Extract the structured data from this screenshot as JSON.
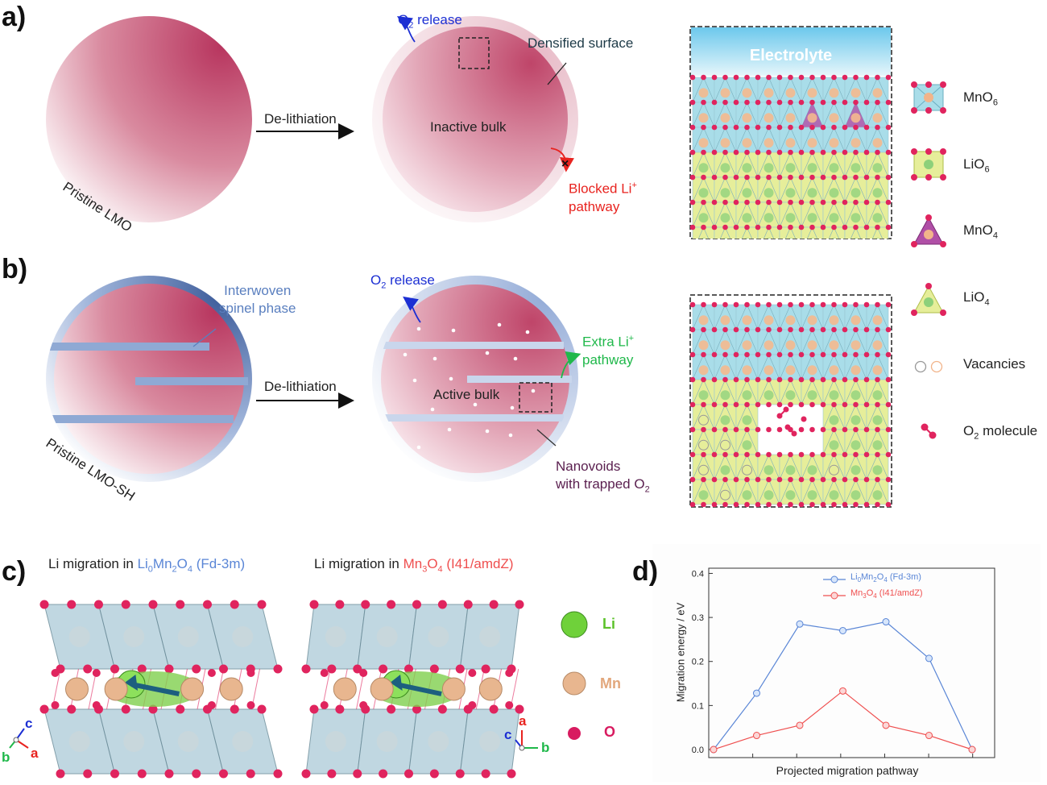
{
  "panels": {
    "a": {
      "label": "a)",
      "pristine_label": "Pristine LMO",
      "arrow_label": "De-lithiation",
      "o2_release": "O",
      "o2_sub": "2",
      "o2_suffix": " release",
      "densified": "Densified surface",
      "inactive_bulk": "Inactive bulk",
      "blocked_line1": "Blocked Li",
      "blocked_sup": "+",
      "blocked_line2": "pathway",
      "electrolyte": "Electrolyte"
    },
    "b": {
      "label": "b)",
      "pristine_label": "Pristine LMO-SH",
      "interwoven_line1": "Interwoven",
      "interwoven_line2": "spinel phase",
      "arrow_label": "De-lithiation",
      "o2_release": "O",
      "o2_sub": "2",
      "o2_suffix": " release",
      "extra_line1": "Extra Li",
      "extra_sup": "+",
      "extra_line2": "pathway",
      "active_bulk": "Active bulk",
      "nanovoids_line1": "Nanovoids",
      "nanovoids_line2": "with trapped O",
      "nanovoids_sub": "2"
    },
    "c": {
      "label": "c)",
      "title1_prefix": "Li migration in ",
      "title1_formula": "Li",
      "title1_sub0": "0",
      "title1_mn": "Mn",
      "title1_sub2": "2",
      "title1_o": "O",
      "title1_sub4": "4",
      "title1_group": " (Fd-3m)",
      "title2_prefix": "Li migration in ",
      "title2_mn": "Mn",
      "title2_sub3": "3",
      "title2_o": "O",
      "title2_sub4": "4",
      "title2_group": " (I41/amdZ)",
      "atom_legend": [
        "Li",
        "Mn",
        "O"
      ],
      "axes1": [
        "c",
        "b",
        "a"
      ],
      "axes2": [
        "c",
        "a",
        "b"
      ]
    },
    "d": {
      "label": "d)"
    }
  },
  "legend": [
    {
      "name": "MnO",
      "sub": "6",
      "icon": "mno6-octahedron-icon"
    },
    {
      "name": "LiO",
      "sub": "6",
      "icon": "lio6-octahedron-icon"
    },
    {
      "name": "MnO",
      "sub": "4",
      "icon": "mno4-tetrahedron-icon"
    },
    {
      "name": "LiO",
      "sub": "4",
      "icon": "lio4-tetrahedron-icon"
    },
    {
      "name": "Vacancies",
      "sub": "",
      "icon": "vacancy-icon"
    },
    {
      "name": "O",
      "sub": "2",
      "suffix": " molecule",
      "icon": "o2-molecule-icon"
    }
  ],
  "colors": {
    "lmo_pink": "#c24b6e",
    "spinel_blue": "#7f9cc9",
    "mno6": "#a9dde9",
    "lio6": "#e6ee9a",
    "mno4": "#b04fa6",
    "oxygen": "#e0245e",
    "li_green": "#4caf2a",
    "mn_tan": "#e2b28a",
    "series1": "#5a86d6",
    "series2": "#ef4f4f"
  },
  "chart_data": {
    "type": "line",
    "xlabel": "Projected migration pathway",
    "ylabel": "Migration energy / eV",
    "ylim": [
      0.0,
      0.4
    ],
    "yticks": [
      "0.0",
      "0.1",
      "0.2",
      "0.3",
      "0.4"
    ],
    "x": [
      0,
      1,
      2,
      3,
      4,
      5,
      6
    ],
    "series": [
      {
        "name": "Li0Mn2O4 (Fd-3m)",
        "name_main": "Li",
        "name_sub0": "0",
        "name_mn": "Mn",
        "name_sub2": "2",
        "name_o": "O",
        "name_sub4": "4",
        "name_group": " (Fd-3m)",
        "color": "#5a86d6",
        "values": [
          0.0,
          0.128,
          0.285,
          0.27,
          0.29,
          0.207,
          0.0
        ]
      },
      {
        "name": "Mn3O4 (I41/amdZ)",
        "name_mn": "Mn",
        "name_sub3": "3",
        "name_o": "O",
        "name_sub4": "4",
        "name_group": " (I41/amdZ)",
        "color": "#ef4f4f",
        "values": [
          0.0,
          0.032,
          0.055,
          0.133,
          0.055,
          0.032,
          0.0
        ]
      }
    ],
    "legend_position": "top-center"
  }
}
